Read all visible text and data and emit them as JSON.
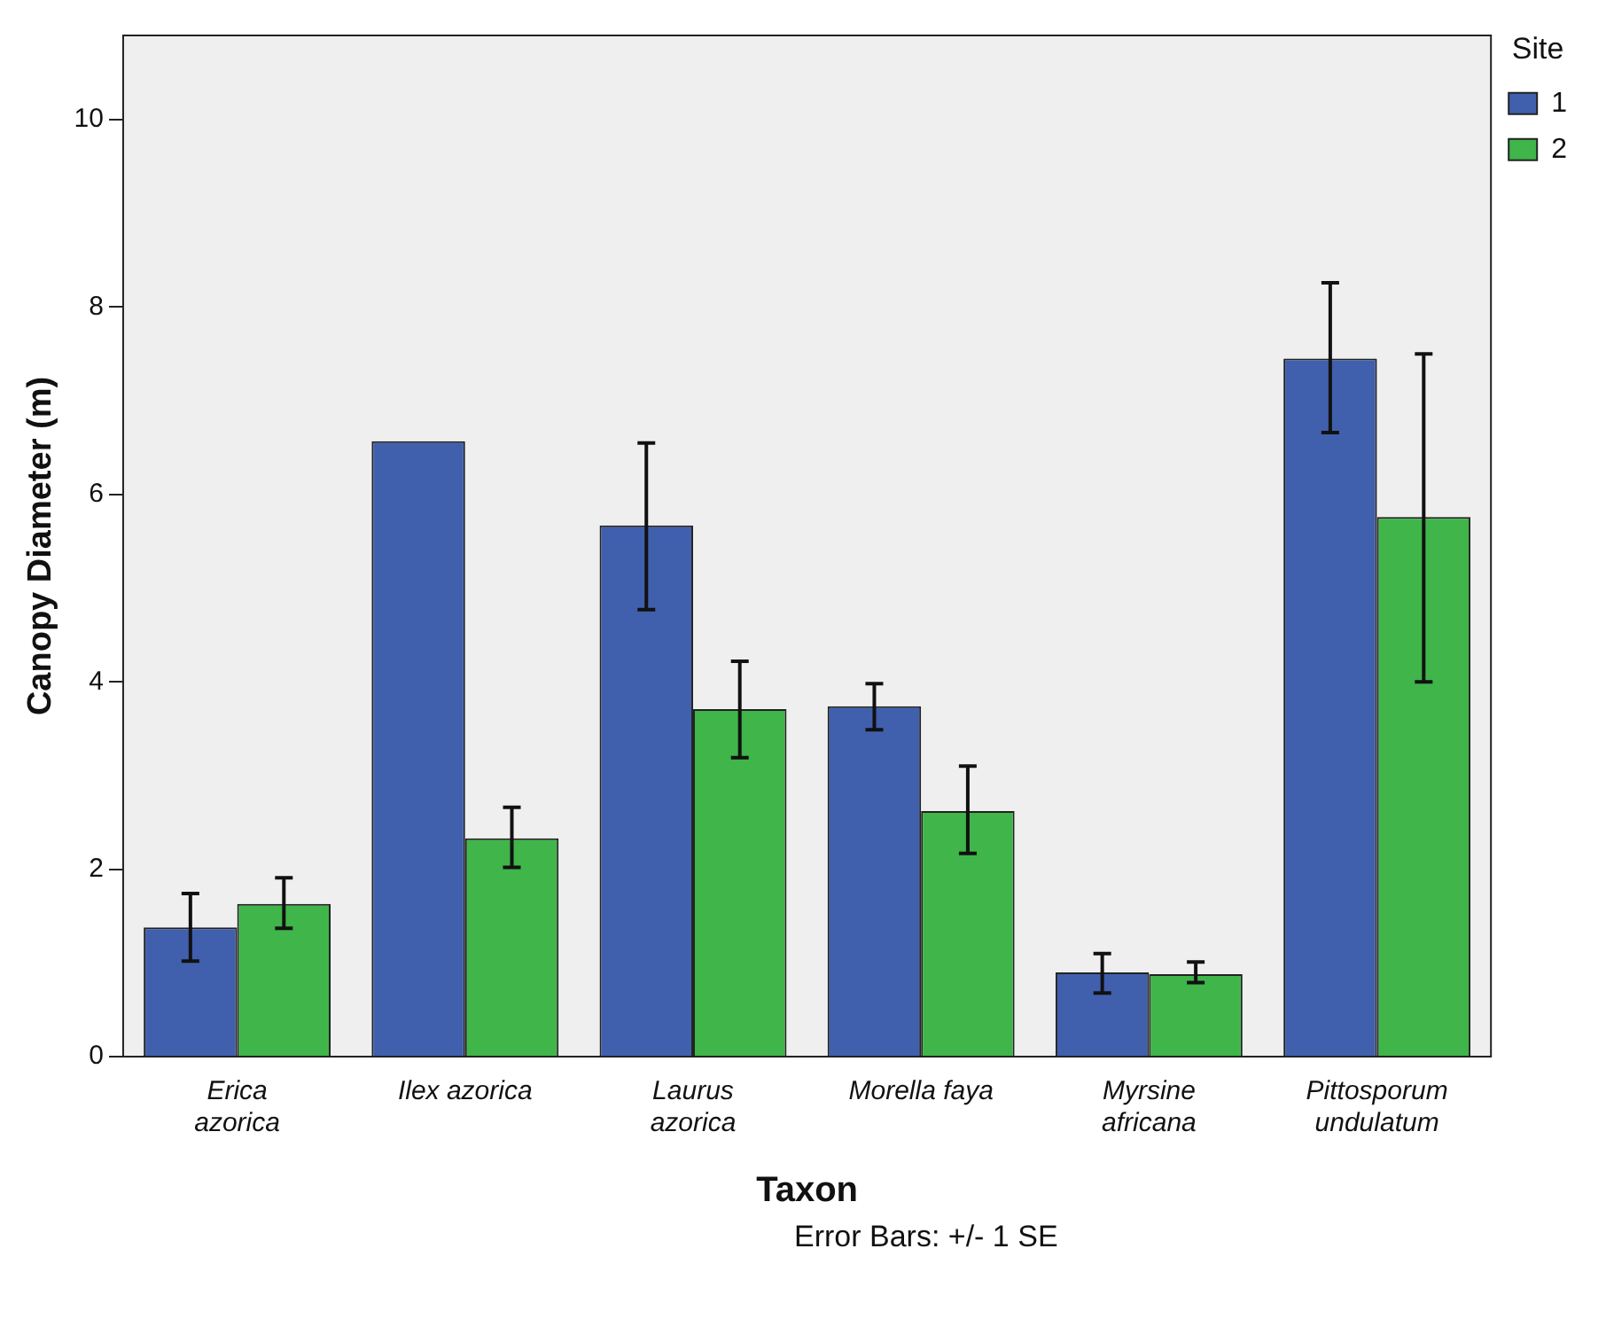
{
  "chart_data": {
    "type": "bar",
    "xlabel": "Taxon",
    "ylabel": "Canopy Diameter (m)",
    "legend_title": "Site",
    "legend": "top right",
    "categories": [
      "Erica azorica",
      "Ilex azorica",
      "Laurus azorica",
      "Morella faya",
      "Myrsine africana",
      "Pittosporum undulatum"
    ],
    "series": [
      {
        "name": "1",
        "color": "#4060ae",
        "values": [
          1.38,
          6.57,
          5.67,
          3.74,
          0.9,
          7.45
        ],
        "errors": [
          [
            1.02,
            1.74
          ],
          null,
          [
            4.77,
            6.55
          ],
          [
            3.49,
            3.98
          ],
          [
            0.68,
            1.1
          ],
          [
            6.66,
            8.26
          ]
        ]
      },
      {
        "name": "2",
        "color": "#3fb54a",
        "values": [
          1.63,
          2.33,
          3.71,
          2.62,
          0.88,
          5.76
        ],
        "errors": [
          [
            1.37,
            1.91
          ],
          [
            2.02,
            2.66
          ],
          [
            3.19,
            4.22
          ],
          [
            2.17,
            3.1
          ],
          [
            0.79,
            1.01
          ],
          [
            4.0,
            7.5
          ]
        ]
      }
    ],
    "ylim": [
      0,
      10.9
    ],
    "yticks": [
      0,
      2,
      4,
      6,
      8,
      10
    ],
    "annotations": [
      "Error Bars: +/- 1 SE"
    ]
  }
}
